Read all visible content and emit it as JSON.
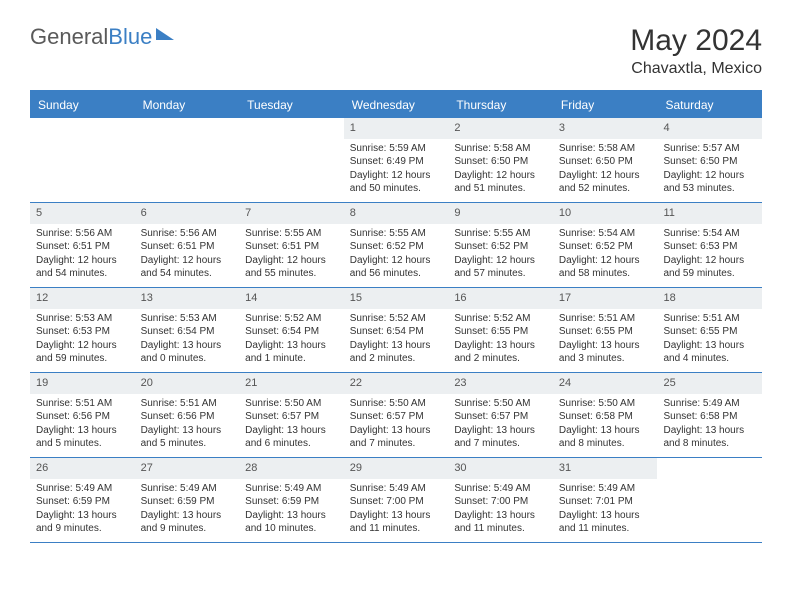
{
  "brand": {
    "name_part1": "General",
    "name_part2": "Blue"
  },
  "title": "May 2024",
  "location": "Chavaxtla, Mexico",
  "colors": {
    "accent": "#3b7fc4",
    "header_bg": "#eceff1",
    "text": "#333333",
    "background": "#ffffff"
  },
  "weekdays": [
    "Sunday",
    "Monday",
    "Tuesday",
    "Wednesday",
    "Thursday",
    "Friday",
    "Saturday"
  ],
  "weeks": [
    [
      null,
      null,
      null,
      {
        "n": "1",
        "sunrise": "5:59 AM",
        "sunset": "6:49 PM",
        "daylight": "12 hours and 50 minutes."
      },
      {
        "n": "2",
        "sunrise": "5:58 AM",
        "sunset": "6:50 PM",
        "daylight": "12 hours and 51 minutes."
      },
      {
        "n": "3",
        "sunrise": "5:58 AM",
        "sunset": "6:50 PM",
        "daylight": "12 hours and 52 minutes."
      },
      {
        "n": "4",
        "sunrise": "5:57 AM",
        "sunset": "6:50 PM",
        "daylight": "12 hours and 53 minutes."
      }
    ],
    [
      {
        "n": "5",
        "sunrise": "5:56 AM",
        "sunset": "6:51 PM",
        "daylight": "12 hours and 54 minutes."
      },
      {
        "n": "6",
        "sunrise": "5:56 AM",
        "sunset": "6:51 PM",
        "daylight": "12 hours and 54 minutes."
      },
      {
        "n": "7",
        "sunrise": "5:55 AM",
        "sunset": "6:51 PM",
        "daylight": "12 hours and 55 minutes."
      },
      {
        "n": "8",
        "sunrise": "5:55 AM",
        "sunset": "6:52 PM",
        "daylight": "12 hours and 56 minutes."
      },
      {
        "n": "9",
        "sunrise": "5:55 AM",
        "sunset": "6:52 PM",
        "daylight": "12 hours and 57 minutes."
      },
      {
        "n": "10",
        "sunrise": "5:54 AM",
        "sunset": "6:52 PM",
        "daylight": "12 hours and 58 minutes."
      },
      {
        "n": "11",
        "sunrise": "5:54 AM",
        "sunset": "6:53 PM",
        "daylight": "12 hours and 59 minutes."
      }
    ],
    [
      {
        "n": "12",
        "sunrise": "5:53 AM",
        "sunset": "6:53 PM",
        "daylight": "12 hours and 59 minutes."
      },
      {
        "n": "13",
        "sunrise": "5:53 AM",
        "sunset": "6:54 PM",
        "daylight": "13 hours and 0 minutes."
      },
      {
        "n": "14",
        "sunrise": "5:52 AM",
        "sunset": "6:54 PM",
        "daylight": "13 hours and 1 minute."
      },
      {
        "n": "15",
        "sunrise": "5:52 AM",
        "sunset": "6:54 PM",
        "daylight": "13 hours and 2 minutes."
      },
      {
        "n": "16",
        "sunrise": "5:52 AM",
        "sunset": "6:55 PM",
        "daylight": "13 hours and 2 minutes."
      },
      {
        "n": "17",
        "sunrise": "5:51 AM",
        "sunset": "6:55 PM",
        "daylight": "13 hours and 3 minutes."
      },
      {
        "n": "18",
        "sunrise": "5:51 AM",
        "sunset": "6:55 PM",
        "daylight": "13 hours and 4 minutes."
      }
    ],
    [
      {
        "n": "19",
        "sunrise": "5:51 AM",
        "sunset": "6:56 PM",
        "daylight": "13 hours and 5 minutes."
      },
      {
        "n": "20",
        "sunrise": "5:51 AM",
        "sunset": "6:56 PM",
        "daylight": "13 hours and 5 minutes."
      },
      {
        "n": "21",
        "sunrise": "5:50 AM",
        "sunset": "6:57 PM",
        "daylight": "13 hours and 6 minutes."
      },
      {
        "n": "22",
        "sunrise": "5:50 AM",
        "sunset": "6:57 PM",
        "daylight": "13 hours and 7 minutes."
      },
      {
        "n": "23",
        "sunrise": "5:50 AM",
        "sunset": "6:57 PM",
        "daylight": "13 hours and 7 minutes."
      },
      {
        "n": "24",
        "sunrise": "5:50 AM",
        "sunset": "6:58 PM",
        "daylight": "13 hours and 8 minutes."
      },
      {
        "n": "25",
        "sunrise": "5:49 AM",
        "sunset": "6:58 PM",
        "daylight": "13 hours and 8 minutes."
      }
    ],
    [
      {
        "n": "26",
        "sunrise": "5:49 AM",
        "sunset": "6:59 PM",
        "daylight": "13 hours and 9 minutes."
      },
      {
        "n": "27",
        "sunrise": "5:49 AM",
        "sunset": "6:59 PM",
        "daylight": "13 hours and 9 minutes."
      },
      {
        "n": "28",
        "sunrise": "5:49 AM",
        "sunset": "6:59 PM",
        "daylight": "13 hours and 10 minutes."
      },
      {
        "n": "29",
        "sunrise": "5:49 AM",
        "sunset": "7:00 PM",
        "daylight": "13 hours and 11 minutes."
      },
      {
        "n": "30",
        "sunrise": "5:49 AM",
        "sunset": "7:00 PM",
        "daylight": "13 hours and 11 minutes."
      },
      {
        "n": "31",
        "sunrise": "5:49 AM",
        "sunset": "7:01 PM",
        "daylight": "13 hours and 11 minutes."
      },
      null
    ]
  ],
  "labels": {
    "sunrise": "Sunrise:",
    "sunset": "Sunset:",
    "daylight": "Daylight:"
  }
}
